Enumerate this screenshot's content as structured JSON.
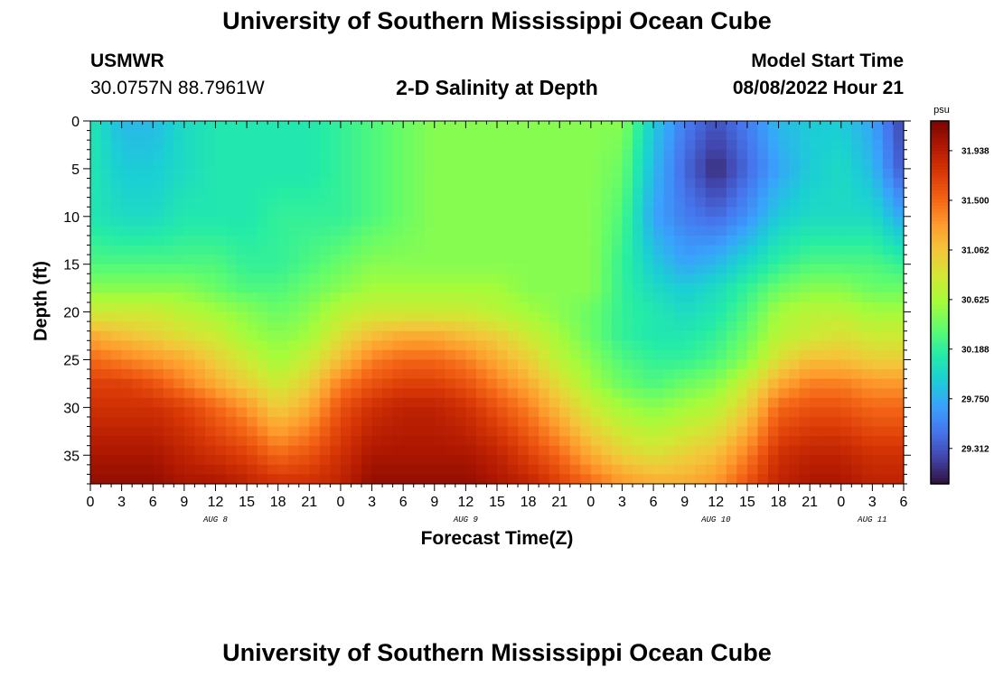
{
  "page": {
    "title": "University of Southern Mississippi Ocean Cube",
    "footer_title": "University of Southern Mississippi Ocean Cube",
    "station_name": "USMWR",
    "station_coords": "30.0757N  88.7961W",
    "subtitle": "2-D Salinity at Depth",
    "model_start_label": "Model Start Time",
    "model_start_value": "08/08/2022 Hour 21"
  },
  "chart_data": {
    "type": "heatmap",
    "title": "2-D Salinity at Depth",
    "xlabel": "Forecast Time(Z)",
    "ylabel": "Depth (ft)",
    "x_tick_labels": [
      "0",
      "3",
      "6",
      "9",
      "12",
      "15",
      "18",
      "21",
      "0",
      "3",
      "6",
      "9",
      "12",
      "15",
      "18",
      "21",
      "0",
      "3",
      "6",
      "9",
      "12",
      "15",
      "18",
      "21",
      "0",
      "3",
      "6"
    ],
    "day_labels": [
      "AUG 8",
      "AUG 9",
      "AUG 10",
      "AUG 11"
    ],
    "x_range_hours": [
      0,
      78
    ],
    "y_ticks": [
      0,
      5,
      10,
      15,
      20,
      25,
      30,
      35
    ],
    "y_range_ft": [
      0,
      38
    ],
    "y_inverted": true,
    "colorbar": {
      "unit": "psu",
      "ticks": [
        31.938,
        31.5,
        31.062,
        30.625,
        30.188,
        29.75,
        29.312
      ],
      "range": [
        29.0,
        32.2
      ],
      "colors": [
        "#30123b",
        "#4145ab",
        "#4675ed",
        "#39a2fc",
        "#1bcfd4",
        "#24eca6",
        "#61fc6c",
        "#a4fc3b",
        "#d1e834",
        "#f3c63a",
        "#fe9b2d",
        "#f36315",
        "#d93806",
        "#b11901",
        "#7a0403"
      ]
    },
    "time_hours": [
      0,
      3,
      6,
      9,
      12,
      15,
      18,
      21,
      24,
      27,
      30,
      33,
      36,
      39,
      42,
      45,
      48,
      51,
      54,
      57,
      60,
      63,
      66,
      69,
      72,
      75,
      78
    ],
    "depth_ft": [
      0,
      5,
      10,
      15,
      17.5,
      20,
      22.5,
      25,
      27.5,
      30,
      35,
      38
    ],
    "salinity_psu": [
      [
        30.1,
        29.8,
        29.8,
        30.0,
        30.1,
        30.1,
        30.1,
        30.1,
        30.2,
        30.3,
        30.4,
        30.5,
        30.5,
        30.5,
        30.5,
        30.5,
        30.5,
        30.5,
        29.9,
        29.5,
        29.3,
        29.5,
        29.8,
        29.9,
        29.9,
        29.7,
        29.2
      ],
      [
        30.1,
        29.9,
        29.9,
        30.0,
        30.1,
        30.1,
        30.1,
        30.1,
        30.2,
        30.3,
        30.4,
        30.5,
        30.5,
        30.5,
        30.5,
        30.5,
        30.5,
        30.4,
        29.8,
        29.4,
        29.1,
        29.4,
        29.7,
        29.9,
        30.0,
        29.8,
        29.3
      ],
      [
        30.1,
        30.0,
        30.0,
        30.1,
        30.1,
        30.1,
        30.2,
        30.2,
        30.2,
        30.3,
        30.4,
        30.5,
        30.5,
        30.5,
        30.5,
        30.5,
        30.5,
        30.3,
        29.7,
        29.5,
        29.4,
        29.6,
        29.9,
        30.0,
        30.0,
        30.0,
        29.7
      ],
      [
        30.3,
        30.3,
        30.3,
        30.3,
        30.3,
        30.2,
        30.2,
        30.3,
        30.4,
        30.5,
        30.5,
        30.5,
        30.5,
        30.5,
        30.5,
        30.5,
        30.5,
        30.2,
        29.9,
        29.7,
        29.8,
        30.0,
        30.2,
        30.3,
        30.3,
        30.3,
        30.2
      ],
      [
        30.5,
        30.5,
        30.5,
        30.5,
        30.4,
        30.3,
        30.3,
        30.4,
        30.5,
        30.6,
        30.6,
        30.6,
        30.6,
        30.6,
        30.5,
        30.5,
        30.5,
        30.2,
        30.0,
        29.9,
        30.0,
        30.2,
        30.4,
        30.5,
        30.5,
        30.4,
        30.4
      ],
      [
        30.8,
        30.8,
        30.8,
        30.7,
        30.6,
        30.5,
        30.4,
        30.5,
        30.7,
        30.8,
        30.8,
        30.8,
        30.8,
        30.7,
        30.6,
        30.5,
        30.4,
        30.2,
        30.1,
        30.0,
        30.1,
        30.3,
        30.6,
        30.7,
        30.7,
        30.6,
        30.6
      ],
      [
        31.2,
        31.1,
        31.0,
        30.9,
        30.8,
        30.6,
        30.5,
        30.6,
        30.9,
        31.1,
        31.2,
        31.2,
        31.1,
        31.0,
        30.8,
        30.6,
        30.4,
        30.2,
        30.1,
        30.1,
        30.2,
        30.4,
        30.7,
        30.8,
        30.9,
        30.8,
        30.8
      ],
      [
        31.5,
        31.4,
        31.3,
        31.2,
        31.0,
        30.8,
        30.6,
        30.8,
        31.1,
        31.4,
        31.5,
        31.5,
        31.4,
        31.2,
        31.0,
        30.7,
        30.5,
        30.3,
        30.2,
        30.2,
        30.3,
        30.5,
        30.9,
        31.1,
        31.1,
        31.0,
        31.0
      ],
      [
        31.7,
        31.7,
        31.6,
        31.4,
        31.2,
        31.0,
        30.8,
        31.0,
        31.4,
        31.6,
        31.7,
        31.7,
        31.6,
        31.4,
        31.2,
        30.9,
        30.6,
        30.4,
        30.3,
        30.4,
        30.5,
        30.8,
        31.2,
        31.4,
        31.4,
        31.3,
        31.3
      ],
      [
        31.8,
        31.8,
        31.8,
        31.7,
        31.5,
        31.3,
        31.0,
        31.2,
        31.6,
        31.8,
        31.9,
        31.9,
        31.8,
        31.6,
        31.4,
        31.1,
        30.8,
        30.6,
        30.5,
        30.6,
        30.7,
        31.0,
        31.5,
        31.6,
        31.6,
        31.5,
        31.5
      ],
      [
        32.0,
        32.0,
        32.0,
        31.9,
        31.8,
        31.7,
        31.5,
        31.6,
        31.8,
        32.0,
        32.0,
        32.0,
        32.0,
        31.9,
        31.7,
        31.5,
        31.2,
        31.0,
        30.9,
        31.0,
        31.1,
        31.4,
        31.8,
        31.9,
        31.9,
        31.8,
        31.8
      ],
      [
        32.1,
        32.1,
        32.1,
        32.0,
        32.0,
        31.9,
        31.8,
        31.8,
        31.9,
        32.1,
        32.1,
        32.1,
        32.1,
        32.0,
        31.9,
        31.7,
        31.5,
        31.3,
        31.2,
        31.2,
        31.3,
        31.6,
        31.9,
        32.0,
        32.0,
        31.9,
        31.9
      ]
    ]
  }
}
